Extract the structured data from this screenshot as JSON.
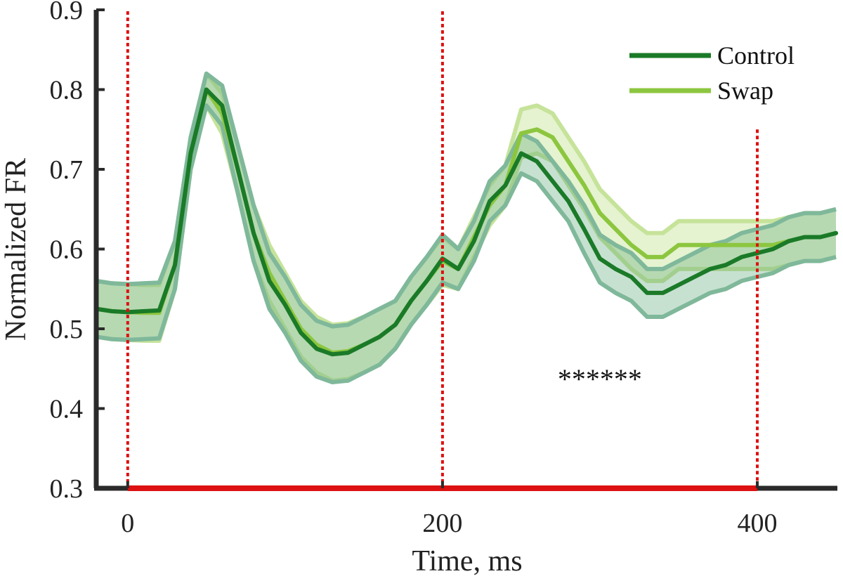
{
  "chart_data": {
    "type": "line",
    "title": "",
    "xlabel": "Time, ms",
    "ylabel": "Normalized FR",
    "xlim": [
      -20,
      450
    ],
    "ylim": [
      0.3,
      0.9
    ],
    "xticks": [
      0,
      200,
      400
    ],
    "xtick_labels": [
      "0",
      "200",
      "400"
    ],
    "yticks": [
      0.3,
      0.4,
      0.5,
      0.6,
      0.7,
      0.8,
      0.9
    ],
    "ytick_labels": [
      "0.3",
      "0.4",
      "0.5",
      "0.6",
      "0.7",
      "0.8",
      "0.9"
    ],
    "x": [
      -20,
      -10,
      0,
      10,
      20,
      30,
      40,
      50,
      60,
      70,
      80,
      90,
      100,
      110,
      120,
      130,
      140,
      150,
      160,
      170,
      180,
      190,
      200,
      210,
      220,
      230,
      240,
      250,
      260,
      270,
      280,
      290,
      300,
      310,
      320,
      330,
      340,
      350,
      360,
      370,
      380,
      390,
      400,
      410,
      420,
      430,
      440,
      450
    ],
    "series": [
      {
        "name": "Control",
        "color": "#1a7a28",
        "band_color": "#5fa878",
        "values": [
          0.525,
          0.522,
          0.521,
          0.522,
          0.523,
          0.58,
          0.72,
          0.8,
          0.78,
          0.7,
          0.62,
          0.56,
          0.53,
          0.495,
          0.475,
          0.468,
          0.47,
          0.48,
          0.49,
          0.505,
          0.535,
          0.56,
          0.588,
          0.575,
          0.61,
          0.66,
          0.68,
          0.72,
          0.71,
          0.685,
          0.66,
          0.625,
          0.588,
          0.575,
          0.565,
          0.545,
          0.545,
          0.555,
          0.565,
          0.575,
          0.58,
          0.59,
          0.595,
          0.6,
          0.61,
          0.615,
          0.615,
          0.62
        ],
        "band": [
          0.035,
          0.035,
          0.035,
          0.035,
          0.035,
          0.03,
          0.02,
          0.02,
          0.025,
          0.03,
          0.035,
          0.035,
          0.035,
          0.035,
          0.035,
          0.035,
          0.035,
          0.035,
          0.035,
          0.03,
          0.03,
          0.03,
          0.03,
          0.025,
          0.025,
          0.025,
          0.025,
          0.025,
          0.025,
          0.025,
          0.025,
          0.03,
          0.03,
          0.03,
          0.03,
          0.03,
          0.03,
          0.03,
          0.03,
          0.03,
          0.03,
          0.03,
          0.03,
          0.03,
          0.03,
          0.03,
          0.03,
          0.03
        ]
      },
      {
        "name": "Swap",
        "color": "#8cc63f",
        "band_color": "#d4ebb0",
        "values": [
          0.525,
          0.522,
          0.521,
          0.52,
          0.52,
          0.58,
          0.72,
          0.8,
          0.77,
          0.7,
          0.62,
          0.57,
          0.535,
          0.5,
          0.48,
          0.47,
          0.472,
          0.48,
          0.49,
          0.505,
          0.535,
          0.56,
          0.585,
          0.575,
          0.615,
          0.655,
          0.68,
          0.745,
          0.75,
          0.74,
          0.71,
          0.68,
          0.645,
          0.625,
          0.605,
          0.59,
          0.59,
          0.605,
          0.605,
          0.605,
          0.605,
          0.605,
          0.605,
          0.605,
          0.61,
          0.615,
          0.615,
          0.62
        ],
        "band": [
          0.035,
          0.035,
          0.035,
          0.035,
          0.035,
          0.03,
          0.02,
          0.02,
          0.025,
          0.03,
          0.035,
          0.035,
          0.035,
          0.035,
          0.035,
          0.035,
          0.035,
          0.035,
          0.035,
          0.03,
          0.03,
          0.03,
          0.03,
          0.025,
          0.025,
          0.025,
          0.025,
          0.03,
          0.03,
          0.03,
          0.03,
          0.03,
          0.03,
          0.03,
          0.03,
          0.03,
          0.03,
          0.03,
          0.03,
          0.03,
          0.03,
          0.03,
          0.03,
          0.03,
          0.03,
          0.03,
          0.03,
          0.03
        ]
      }
    ],
    "vlines": [
      0,
      200,
      400
    ],
    "vline_color": "#dd1111",
    "baseline_bar": {
      "x_start": 0,
      "x_end": 400,
      "color": "#dd1111"
    },
    "annotations": [
      {
        "text": "******",
        "x": 300,
        "y": 0.45
      }
    ],
    "legend": {
      "position": "top-right",
      "entries": [
        "Control",
        "Swap"
      ]
    },
    "grid": false
  }
}
